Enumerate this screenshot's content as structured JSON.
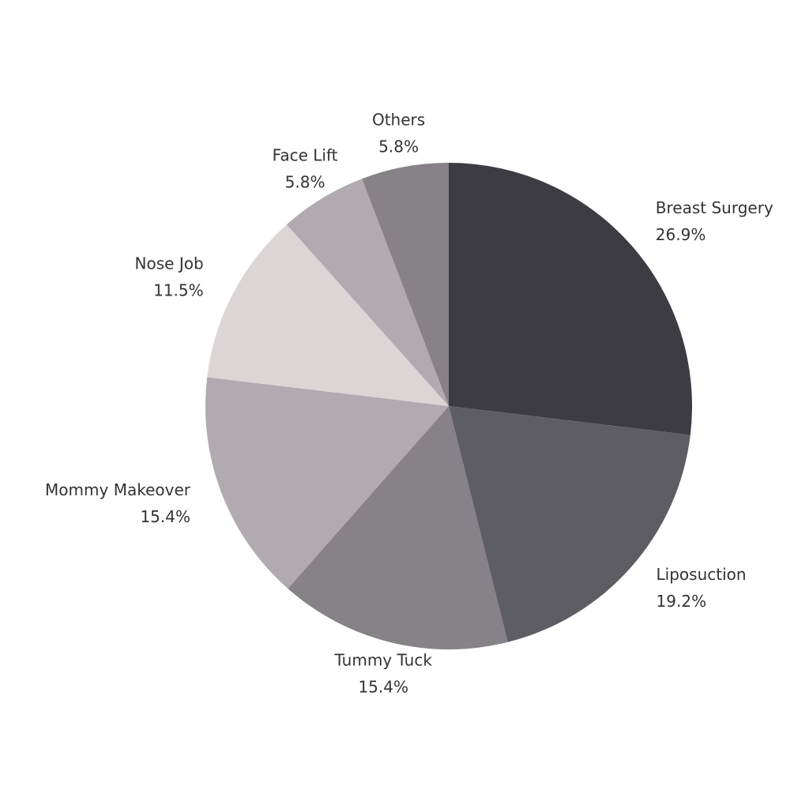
{
  "chart_data": {
    "type": "pie",
    "categories": [
      "Breast Surgery",
      "Liposuction",
      "Tummy Tuck",
      "Mommy Makeover",
      "Nose Job",
      "Face Lift",
      "Others"
    ],
    "values": [
      26.9,
      19.2,
      15.4,
      15.4,
      11.5,
      5.8,
      5.8
    ],
    "value_labels": [
      "26.9%",
      "19.2%",
      "15.4%",
      "15.4%",
      "11.5%",
      "5.8%",
      "5.8%"
    ],
    "colors": [
      "#3d3c42",
      "#5f5d64",
      "#878188",
      "#b1aab0",
      "#ddd4d6",
      "#b1aab0",
      "#878188"
    ]
  }
}
